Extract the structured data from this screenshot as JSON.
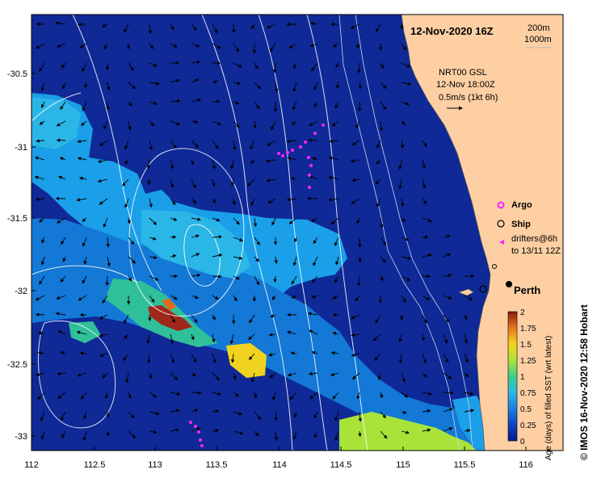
{
  "map": {
    "date_title": "12-Nov-2020 16Z",
    "depth_contours": [
      "200m",
      "1000m"
    ],
    "current_source": "NRT00 GSL",
    "current_time": "12-Nov 18:00Z",
    "current_scale": "0.5m/s (1kt 6h)",
    "city": "Perth",
    "credit": "© IMOS 16-Nov-2020 12:58 Hobart",
    "colors": {
      "land": "#fdcfa3",
      "ocean_deep": "#0f2996",
      "argo": "#ff22ff",
      "drifter": "#ff22ff"
    }
  },
  "legend": {
    "argo": "Argo",
    "ship": "Ship",
    "drifters_line1": "drifters@6h",
    "drifters_line2": "to 13/11 12Z"
  },
  "axes": {
    "x_ticks": [
      "112",
      "112.5",
      "113",
      "113.5",
      "114",
      "114.5",
      "115",
      "115.5",
      "116"
    ],
    "y_ticks": [
      "-30.5",
      "-31",
      "-31.5",
      "-32",
      "-32.5",
      "-33"
    ]
  },
  "colorbar": {
    "label": "Age (days) of filled SST (wrt latest)",
    "ticks": [
      "2",
      "1.75",
      "1.5",
      "1.25",
      "1",
      "0.75",
      "0.5",
      "0.25",
      "0"
    ],
    "range": [
      0,
      2
    ]
  }
}
